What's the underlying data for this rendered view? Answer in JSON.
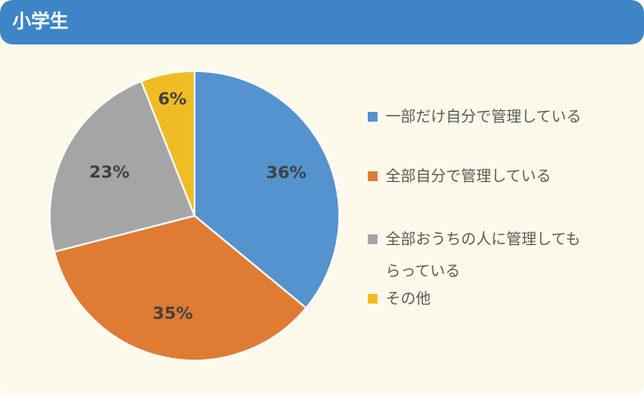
{
  "header": {
    "title": "小学生"
  },
  "chart_data": {
    "type": "pie",
    "title": "",
    "slices": [
      {
        "label": "一部だけ自分で管理している",
        "value": 36,
        "display": "36%",
        "color": "#5593ce"
      },
      {
        "label": "全部自分で管理している",
        "value": 35,
        "display": "35%",
        "color": "#e07b33"
      },
      {
        "label": "全部おうちの人に管理してもらっている",
        "value": 23,
        "display": "23%",
        "color": "#a5a5a5"
      },
      {
        "label": "その他",
        "value": 6,
        "display": "6%",
        "color": "#f0bc23"
      }
    ],
    "legend_position": "right",
    "legend_lines": [
      [
        "一部だけ自分で管理している"
      ],
      [
        "全部自分で管理している"
      ],
      [
        "全部おうちの人に管理しても",
        "らっている"
      ],
      [
        "その他"
      ]
    ]
  }
}
